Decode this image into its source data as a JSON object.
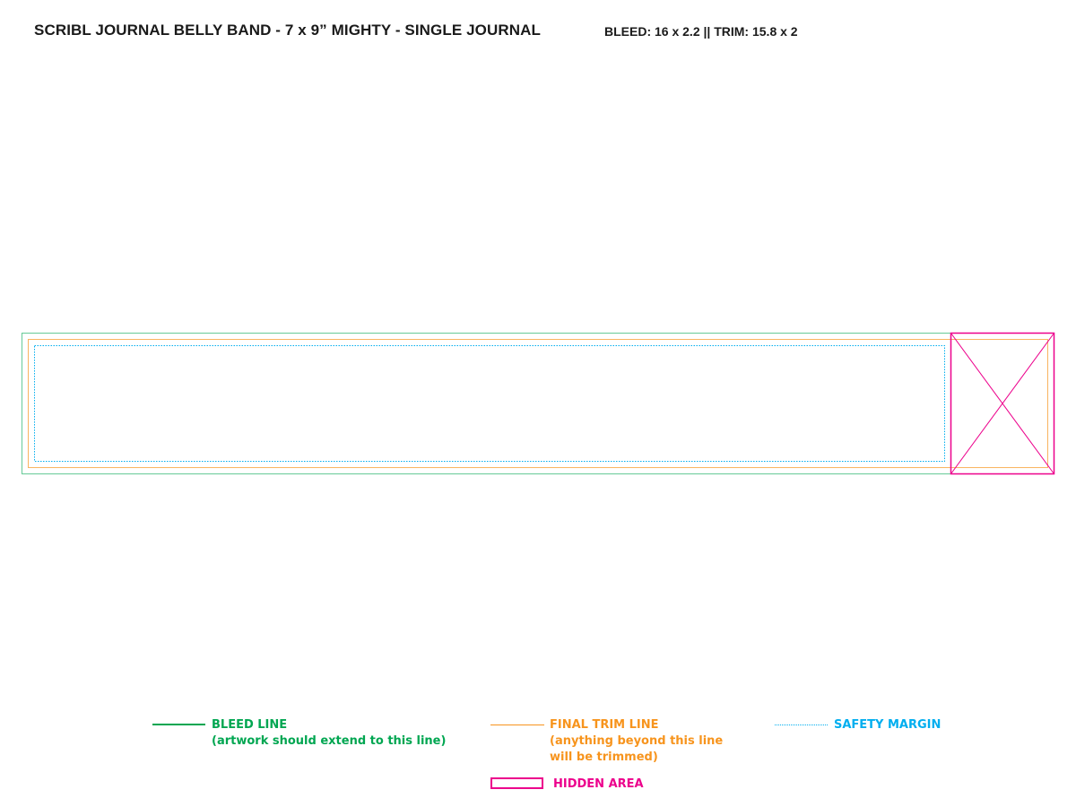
{
  "header": {
    "title": "SCRIBL JOURNAL BELLY BAND - 7 x 9” MIGHTY - SINGLE JOURNAL",
    "specs": "BLEED: 16 x 2.2 || TRIM: 15.8 x 2"
  },
  "colors": {
    "bleed": "#00a651",
    "trim": "#f7941d",
    "safety": "#00aeef",
    "hidden": "#ec008c"
  },
  "legend": {
    "bleed": {
      "label": "BLEED LINE",
      "note": "(artwork should extend to this line)"
    },
    "trim": {
      "label": "FINAL TRIM LINE",
      "note_line1": "(anything beyond this line",
      "note_line2": "will be trimmed)"
    },
    "safety": {
      "label": "SAFETY MARGIN"
    },
    "hidden": {
      "label": "HIDDEN AREA"
    }
  }
}
